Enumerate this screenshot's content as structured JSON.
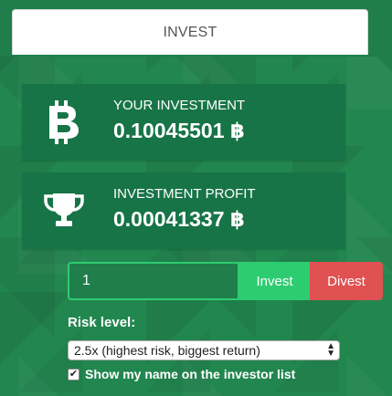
{
  "tab": {
    "label": "INVEST"
  },
  "investment": {
    "label": "YOUR INVESTMENT",
    "value": "0.10045501",
    "currency_symbol": "฿",
    "icon": "bitcoin-icon"
  },
  "profit": {
    "label": "INVESTMENT PROFIT",
    "value": "0.00041337",
    "currency_symbol": "฿",
    "icon": "trophy-icon"
  },
  "form": {
    "amount_value": "1",
    "invest_label": "Invest",
    "divest_label": "Divest",
    "risk_label": "Risk level:",
    "risk_selected": "2.5x (highest risk, biggest return)",
    "show_name_label": "Show my name on the investor list",
    "show_name_checked": true
  },
  "colors": {
    "background": "#22864f",
    "card": "#177447",
    "invest_button": "#2ecc71",
    "divest_button": "#e05151",
    "input_border": "#2ecc71"
  }
}
